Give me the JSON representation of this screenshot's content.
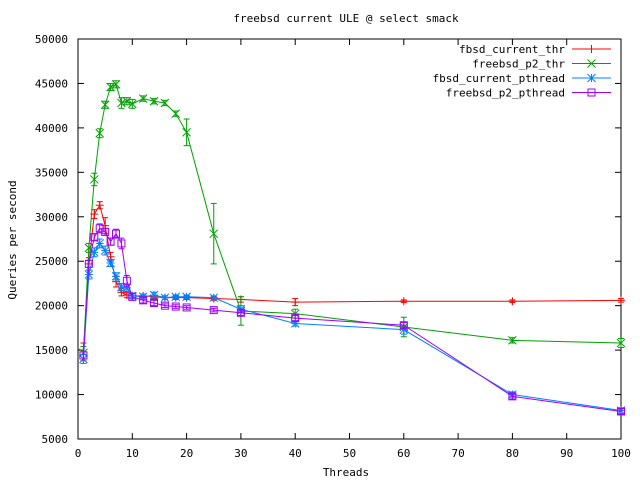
{
  "chart_data": {
    "type": "line",
    "title": "freebsd current ULE @ select smack",
    "xlabel": "Threads",
    "ylabel": "Queries per second",
    "xlim": [
      0,
      100
    ],
    "ylim": [
      5000,
      50000
    ],
    "xticks": [
      0,
      10,
      20,
      30,
      40,
      50,
      60,
      70,
      80,
      90,
      100
    ],
    "yticks": [
      5000,
      10000,
      15000,
      20000,
      25000,
      30000,
      35000,
      40000,
      45000,
      50000
    ],
    "grid": false,
    "legend_position": "top-right",
    "series": [
      {
        "name": "fbsd_current_thr",
        "color": "#ff0000",
        "marker": "plus",
        "points": [
          [
            1,
            14800,
            1000
          ],
          [
            2,
            24700,
            700
          ],
          [
            3,
            30300,
            500
          ],
          [
            4,
            31300,
            400
          ],
          [
            5,
            29000,
            900
          ],
          [
            6,
            25500,
            500
          ],
          [
            7,
            22700,
            600
          ],
          [
            8,
            21500,
            400
          ],
          [
            9,
            21200,
            300
          ],
          [
            10,
            21100,
            300
          ],
          [
            12,
            21100,
            200
          ],
          [
            14,
            21000,
            200
          ],
          [
            16,
            20900,
            200
          ],
          [
            18,
            20900,
            200
          ],
          [
            20,
            20900,
            200
          ],
          [
            25,
            20800,
            200
          ],
          [
            30,
            20700,
            300
          ],
          [
            40,
            20400,
            400
          ],
          [
            60,
            20500,
            150
          ],
          [
            80,
            20500,
            150
          ],
          [
            100,
            20600,
            200
          ]
        ]
      },
      {
        "name": "freebsd_p2_thr",
        "color": "#00a000",
        "marker": "cross",
        "points": [
          [
            1,
            14700,
            700
          ],
          [
            2,
            26500,
            500
          ],
          [
            3,
            34200,
            700
          ],
          [
            4,
            39400,
            500
          ],
          [
            5,
            42600,
            400
          ],
          [
            6,
            44600,
            400
          ],
          [
            7,
            44900,
            400
          ],
          [
            8,
            42800,
            600
          ],
          [
            9,
            43000,
            400
          ],
          [
            10,
            42700,
            500
          ],
          [
            12,
            43300,
            300
          ],
          [
            14,
            43000,
            300
          ],
          [
            16,
            42800,
            300
          ],
          [
            18,
            41600,
            300
          ],
          [
            20,
            39500,
            1500
          ],
          [
            25,
            28100,
            3400
          ],
          [
            30,
            19400,
            1600
          ],
          [
            40,
            19100,
            500
          ],
          [
            60,
            17600,
            1100
          ],
          [
            80,
            16100,
            300
          ],
          [
            100,
            15800,
            500
          ]
        ]
      },
      {
        "name": "fbsd_current_pthread",
        "color": "#0080ff",
        "marker": "star",
        "points": [
          [
            1,
            14000,
            500
          ],
          [
            2,
            23500,
            500
          ],
          [
            3,
            26000,
            500
          ],
          [
            4,
            27000,
            500
          ],
          [
            5,
            26200,
            500
          ],
          [
            6,
            24800,
            400
          ],
          [
            7,
            23300,
            400
          ],
          [
            8,
            22100,
            400
          ],
          [
            9,
            22000,
            400
          ],
          [
            10,
            21100,
            300
          ],
          [
            12,
            21000,
            300
          ],
          [
            14,
            21200,
            300
          ],
          [
            16,
            20900,
            200
          ],
          [
            18,
            21000,
            200
          ],
          [
            20,
            21000,
            200
          ],
          [
            25,
            20900,
            200
          ],
          [
            30,
            19600,
            400
          ],
          [
            40,
            18000,
            300
          ],
          [
            60,
            17300,
            500
          ],
          [
            80,
            10000,
            300
          ],
          [
            100,
            8200,
            300
          ]
        ]
      },
      {
        "name": "freebsd_p2_pthread",
        "color": "#a000ff",
        "marker": "square",
        "points": [
          [
            1,
            14400,
            400
          ],
          [
            2,
            24700,
            400
          ],
          [
            3,
            27700,
            400
          ],
          [
            4,
            28700,
            500
          ],
          [
            5,
            28300,
            400
          ],
          [
            6,
            27200,
            400
          ],
          [
            7,
            28100,
            500
          ],
          [
            8,
            27000,
            600
          ],
          [
            9,
            22800,
            600
          ],
          [
            10,
            21000,
            400
          ],
          [
            12,
            20600,
            300
          ],
          [
            14,
            20300,
            300
          ],
          [
            16,
            20000,
            200
          ],
          [
            18,
            19900,
            200
          ],
          [
            20,
            19800,
            200
          ],
          [
            25,
            19500,
            200
          ],
          [
            30,
            19200,
            300
          ],
          [
            40,
            18600,
            300
          ],
          [
            60,
            17800,
            300
          ],
          [
            80,
            9800,
            300
          ],
          [
            100,
            8100,
            300
          ]
        ]
      }
    ]
  }
}
